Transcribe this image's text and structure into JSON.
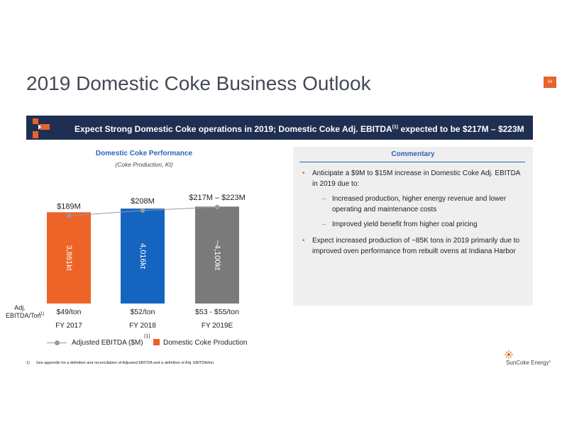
{
  "page_number": "34",
  "title": "2019 Domestic Coke Business Outlook",
  "banner": {
    "text_main": "Expect Strong Domestic Coke operations in 2019; Domestic Coke Adj. EBITDA",
    "text_sup": "(1)",
    "text_end": " expected to be $217M – $223M"
  },
  "performance": {
    "title": "Domestic Coke Performance",
    "subtitle": "(Coke Production, Kt)"
  },
  "chart_data": {
    "type": "bar",
    "categories": [
      "FY 2017",
      "FY 2018",
      "FY 2019E"
    ],
    "series": [
      {
        "name": "Domestic Coke Production",
        "values": [
          3861,
          4016,
          4100
        ],
        "labels": [
          "3,861kt",
          "4,016kt",
          "~4,100kt"
        ],
        "colors": [
          "#ec6428",
          "#1565c0",
          "#7a7a7a"
        ]
      },
      {
        "name": "Adjusted EBITDA ($M)",
        "values": [
          189,
          208,
          220
        ],
        "labels": [
          "$189M",
          "$208M",
          "$217M – $223M"
        ]
      }
    ],
    "row_label_line1": "Adj.",
    "row_label_line2": "EBITDA/Ton",
    "row_label_sup": "(1)",
    "per_ton": [
      "$49/ton",
      "$52/ton",
      "$53 - $55/ton"
    ],
    "legend": {
      "line_label": "Adjusted EBITDA ($M)",
      "line_sup": "(1)",
      "bar_label": "Domestic Coke Production"
    },
    "line_color": "#999999",
    "bar_ylim": [
      0,
      4200
    ],
    "line_ylim": [
      0,
      240
    ]
  },
  "commentary": {
    "title": "Commentary",
    "bullet1": "Anticipate a $9M to $15M increase in Domestic Coke Adj. EBITDA in 2019 due to:",
    "sub1": "Increased production, higher energy revenue and lower operating and maintenance costs",
    "sub2": "Improved yield benefit from higher coal pricing",
    "bullet2": "Expect increased production of ~85K tons in 2019 primarily due to improved oven performance from rebuilt ovens at Indiana Harbor",
    "bullet_mark": "•",
    "sub_mark": "–"
  },
  "footnote": {
    "number": "1)",
    "text": "See appendix for a definition and reconciliation of Adjusted EBITDA and a definition of Adj. EBITDA/ton."
  },
  "brand": {
    "name": "SunCoke Energy",
    "trademark": "®",
    "accent": "#e8632a"
  },
  "colors": {
    "banner": "#1f2f52",
    "accent": "#e8632a",
    "heading_blue": "#2c63b8",
    "panel": "#efefef"
  }
}
